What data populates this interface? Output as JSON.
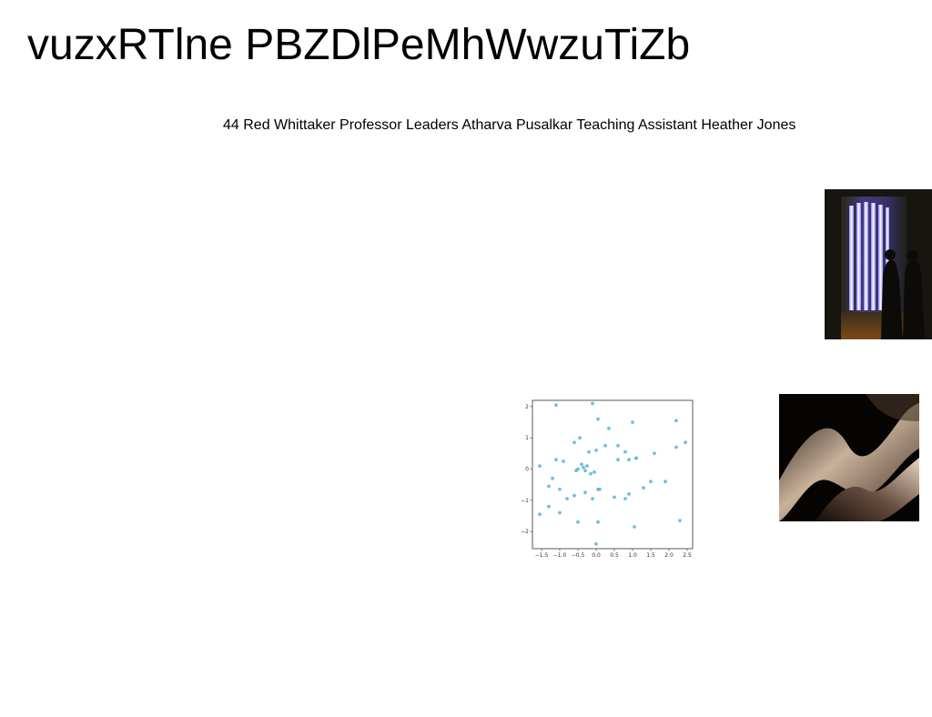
{
  "header": {
    "title": "vuzxRTlne PBZDlPeMhWwzuTiZb",
    "subtitle": "44 Red Whittaker Professor Leaders Atharva Pusalkar Teaching Assistant Heather Jones"
  },
  "images": {
    "photo_lights_icon": "light-installation-image",
    "photo_wave_icon": "abstract-wave-image"
  },
  "colors": {
    "scatter_point": "#5ab4d8",
    "axis": "#333333"
  },
  "chart_data": {
    "type": "scatter",
    "title": "",
    "xlabel": "",
    "ylabel": "",
    "xlim": [
      -1.75,
      2.65
    ],
    "ylim": [
      -2.55,
      2.2
    ],
    "xticks": [
      -1.5,
      -1.0,
      -0.5,
      0.0,
      0.5,
      1.0,
      1.5,
      2.0,
      2.5
    ],
    "yticks": [
      -2,
      -1,
      0,
      1,
      2
    ],
    "xtick_labels": [
      "−1.5",
      "−1.0",
      "−0.5",
      "0.0",
      "0.5",
      "1.0",
      "1.5",
      "2.0",
      "2.5"
    ],
    "ytick_labels": [
      "−2",
      "−1",
      "0",
      "1",
      "2"
    ],
    "x": [
      -1.1,
      -0.1,
      0.05,
      1.0,
      2.2,
      2.45,
      2.2,
      1.6,
      1.1,
      0.8,
      0.9,
      0.6,
      0.35,
      -0.45,
      -0.6,
      -0.4,
      -0.2,
      -0.05,
      0.0,
      0.25,
      -1.55,
      -1.1,
      -0.9,
      -1.3,
      -1.2,
      -1.0,
      -0.8,
      -0.6,
      -0.3,
      0.05,
      0.1,
      -0.1,
      -0.55,
      -0.5,
      -0.35,
      -0.15,
      0.5,
      0.8,
      0.9,
      1.3,
      1.5,
      1.9,
      2.3,
      1.05,
      0.05,
      -0.5,
      -1.0,
      -1.3,
      -1.55,
      0.0,
      0.6,
      1.1,
      -0.25,
      -0.3
    ],
    "y": [
      2.05,
      2.1,
      1.6,
      1.5,
      1.55,
      0.85,
      0.7,
      0.5,
      0.35,
      0.55,
      0.3,
      0.75,
      1.3,
      1.0,
      0.85,
      0.15,
      0.55,
      -0.1,
      0.6,
      0.75,
      0.1,
      0.3,
      0.25,
      -0.55,
      -0.3,
      -0.65,
      -0.95,
      -0.85,
      -0.75,
      -0.65,
      -0.65,
      -0.95,
      -0.05,
      0.0,
      0.05,
      -0.15,
      -0.9,
      -0.95,
      -0.8,
      -0.6,
      -0.4,
      -0.4,
      -1.65,
      -1.85,
      -1.7,
      -1.7,
      -1.4,
      -1.2,
      -1.45,
      -2.4,
      0.3,
      0.35,
      0.1,
      -0.05
    ]
  }
}
